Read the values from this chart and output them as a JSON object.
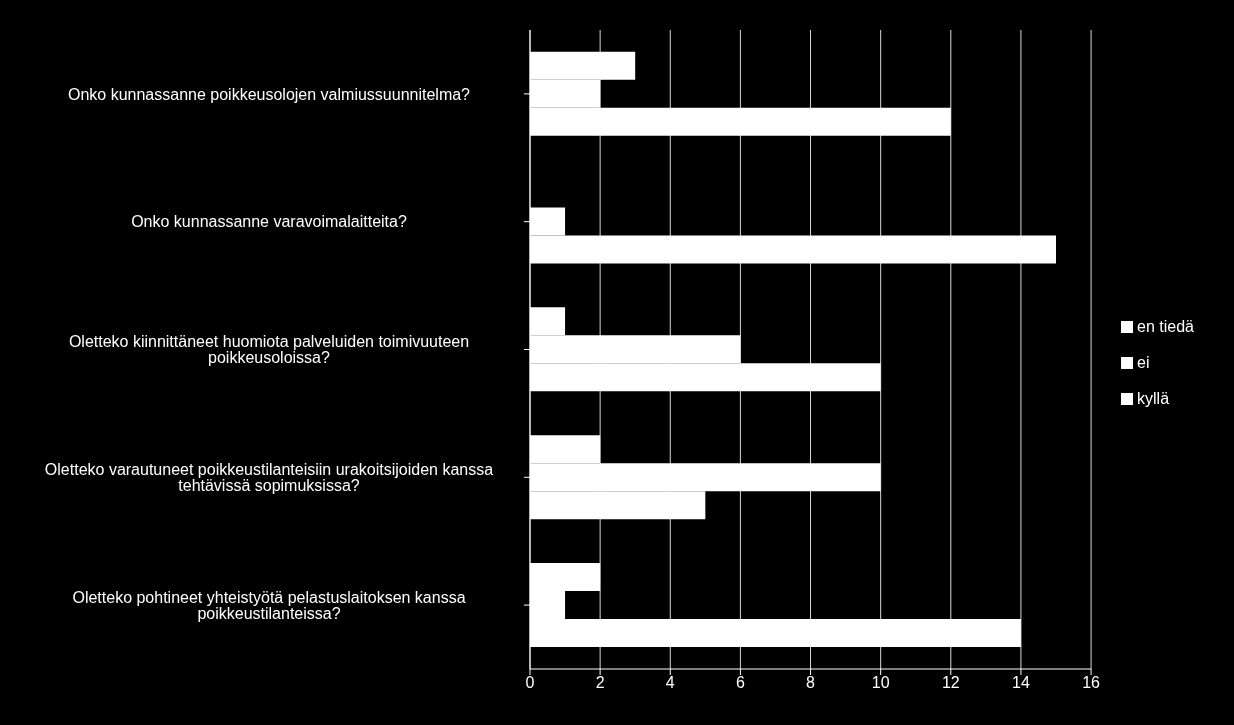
{
  "chart_data": {
    "type": "bar",
    "orientation": "horizontal",
    "categories": [
      "Onko kunnassanne poikkeusolojen valmiussuunnitelma?",
      "Onko kunnassanne varavoimalaitteita?",
      "Oletteko kiinnittäneet huomiota palveluiden toimivuuteen poikkeusoloissa?",
      "Oletteko varautuneet poikkeustilanteisiin urakoitsijoiden kanssa tehtävissä sopimuksissa?",
      "Oletteko pohtineet yhteistyötä pelastuslaitoksen kanssa poikkeustilanteissa?"
    ],
    "series": [
      {
        "name": "en tiedä",
        "color": "#ffffff",
        "values": [
          3,
          0,
          1,
          2,
          2
        ]
      },
      {
        "name": "ei",
        "color": "#ffffff",
        "values": [
          2,
          1,
          6,
          10,
          1
        ]
      },
      {
        "name": "kyllä",
        "color": "#ffffff",
        "values": [
          12,
          15,
          10,
          5,
          14
        ]
      }
    ],
    "xlim": [
      0,
      16
    ],
    "xticks": [
      0,
      2,
      4,
      6,
      8,
      10,
      12,
      14,
      16
    ],
    "grid": "x",
    "legend": "right"
  }
}
